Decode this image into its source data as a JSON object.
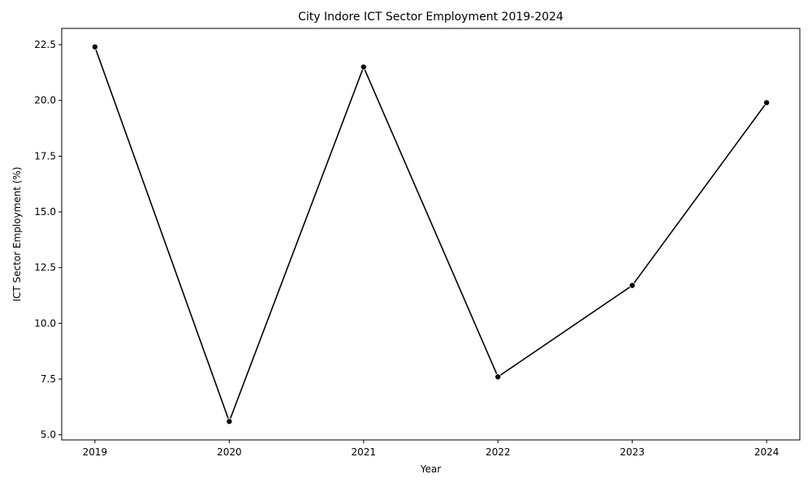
{
  "chart_data": {
    "type": "line",
    "title": "City Indore ICT Sector Employment 2019-2024",
    "xlabel": "Year",
    "ylabel": "ICT Sector Employment (%)",
    "categories": [
      "2019",
      "2020",
      "2021",
      "2022",
      "2023",
      "2024"
    ],
    "series": [
      {
        "values": [
          22.4,
          5.6,
          21.5,
          7.6,
          11.7,
          19.9
        ]
      }
    ],
    "yticks": [
      "5.0",
      "7.5",
      "10.0",
      "12.5",
      "15.0",
      "17.5",
      "20.0",
      "22.5"
    ],
    "ylim": [
      4.77,
      23.23
    ],
    "grid": false,
    "line_color": "#000000",
    "marker_color": "#000000",
    "marker": "circle"
  }
}
